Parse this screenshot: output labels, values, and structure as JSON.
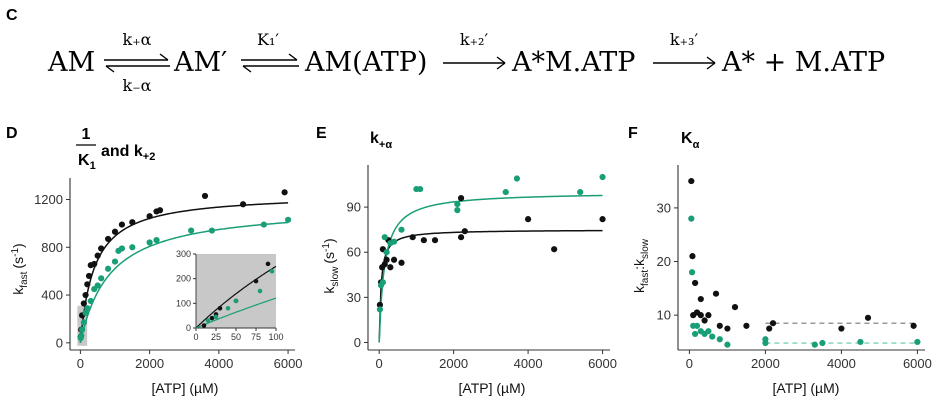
{
  "panel_labels": {
    "c": "C",
    "d": "D",
    "e": "E",
    "f": "F"
  },
  "scheme": {
    "s1": "AM",
    "r1_top": "k₊α",
    "r1_bot": "k₋α",
    "s2": "AM′",
    "r2_top": "K₁′",
    "s3": "AM(ATP)",
    "r3_top": "k₊₂′",
    "s4": "A*M.ATP",
    "r4_top": "k₊₃′",
    "s5": "A* + M.ATP"
  },
  "colors": {
    "black": "#111111",
    "green": "#1a9e77",
    "inset_bg": "#c8c8c8",
    "dashed_black": "#777777",
    "dashed_green": "#5fc6a5"
  },
  "chart_data": [
    {
      "panel": "D",
      "type": "scatter",
      "title": {
        "frac_num": "1",
        "frac_den": "K",
        "frac_den_sub": "1",
        "rest": "and k",
        "rest_sub": "+2"
      },
      "xlabel": "[ATP] (µM)",
      "ylabel": {
        "base": "k",
        "sub": "fast",
        "unit": "(s",
        "sup": "-1",
        "close": ")"
      },
      "xlim": [
        -300,
        6200
      ],
      "ylim": [
        -60,
        1380
      ],
      "xticks": [
        0,
        2000,
        4000,
        6000
      ],
      "yticks": [
        0,
        400,
        800,
        1200
      ],
      "series": [
        {
          "color": "black",
          "fit": {
            "vmax": 1250,
            "k": 400
          },
          "points": [
            [
              10,
              50
            ],
            [
              25,
              110
            ],
            [
              50,
              230
            ],
            [
              100,
              330
            ],
            [
              150,
              400
            ],
            [
              200,
              490
            ],
            [
              250,
              560
            ],
            [
              300,
              650
            ],
            [
              400,
              660
            ],
            [
              500,
              730
            ],
            [
              600,
              790
            ],
            [
              800,
              870
            ],
            [
              1000,
              930
            ],
            [
              1200,
              990
            ],
            [
              1500,
              1010
            ],
            [
              2000,
              1060
            ],
            [
              2200,
              1100
            ],
            [
              2300,
              1110
            ],
            [
              3600,
              1230
            ],
            [
              4700,
              1160
            ],
            [
              5900,
              1260
            ]
          ]
        },
        {
          "color": "green",
          "fit": {
            "vmax": 1150,
            "k": 850
          },
          "points": [
            [
              10,
              40
            ],
            [
              25,
              60
            ],
            [
              50,
              110
            ],
            [
              100,
              170
            ],
            [
              150,
              250
            ],
            [
              200,
              290
            ],
            [
              300,
              350
            ],
            [
              400,
              450
            ],
            [
              500,
              480
            ],
            [
              600,
              540
            ],
            [
              800,
              620
            ],
            [
              1000,
              680
            ],
            [
              1100,
              770
            ],
            [
              1200,
              790
            ],
            [
              1500,
              800
            ],
            [
              2000,
              840
            ],
            [
              2200,
              860
            ],
            [
              3200,
              940
            ],
            [
              3800,
              940
            ],
            [
              5300,
              990
            ],
            [
              6000,
              1030
            ]
          ]
        }
      ],
      "inset": {
        "xlim": [
          0,
          100
        ],
        "ylim": [
          0,
          300
        ],
        "xticks": [
          0,
          25,
          50,
          75,
          100
        ],
        "yticks": [
          0,
          100,
          200,
          300
        ],
        "series": [
          {
            "color": "black",
            "points": [
              [
                10,
                10
              ],
              [
                20,
                40
              ],
              [
                25,
                55
              ],
              [
                30,
                80
              ],
              [
                50,
                110
              ],
              [
                75,
                190
              ],
              [
                90,
                260
              ]
            ]
          },
          {
            "color": "green",
            "points": [
              [
                15,
                30
              ],
              [
                25,
                45
              ],
              [
                40,
                80
              ],
              [
                50,
                110
              ],
              [
                80,
                150
              ],
              [
                95,
                230
              ]
            ]
          }
        ]
      }
    },
    {
      "panel": "E",
      "type": "scatter",
      "title": {
        "base": "k",
        "sub": "+α"
      },
      "xlabel": "[ATP] (µM)",
      "ylabel": {
        "base": "k",
        "sub": "slow",
        "unit": "(s",
        "sup": "-1",
        "close": ")"
      },
      "xlim": [
        -300,
        6200
      ],
      "ylim": [
        -5,
        118
      ],
      "xticks": [
        0,
        2000,
        4000,
        6000
      ],
      "yticks": [
        0,
        30,
        60,
        90
      ],
      "series": [
        {
          "color": "black",
          "fit": {
            "vmax": 75,
            "k": 50
          },
          "points": [
            [
              20,
              25
            ],
            [
              50,
              40
            ],
            [
              80,
              50
            ],
            [
              100,
              62
            ],
            [
              150,
              52
            ],
            [
              200,
              55
            ],
            [
              250,
              68
            ],
            [
              300,
              50
            ],
            [
              400,
              55
            ],
            [
              600,
              53
            ],
            [
              900,
              70
            ],
            [
              1200,
              68
            ],
            [
              1500,
              68
            ],
            [
              2200,
              96
            ],
            [
              2200,
              70
            ],
            [
              2300,
              74
            ],
            [
              4000,
              82
            ],
            [
              4700,
              62
            ],
            [
              6000,
              82
            ]
          ]
        },
        {
          "color": "green",
          "fit": {
            "vmax": 100,
            "k": 140
          },
          "points": [
            [
              20,
              22
            ],
            [
              50,
              38
            ],
            [
              100,
              40
            ],
            [
              150,
              70
            ],
            [
              200,
              60
            ],
            [
              300,
              66
            ],
            [
              400,
              67
            ],
            [
              600,
              75
            ],
            [
              1000,
              102
            ],
            [
              1100,
              102
            ],
            [
              2100,
              88
            ],
            [
              2100,
              92
            ],
            [
              3400,
              100
            ],
            [
              3700,
              109
            ],
            [
              5400,
              100
            ],
            [
              6000,
              110
            ]
          ]
        }
      ]
    },
    {
      "panel": "F",
      "type": "scatter",
      "title": {
        "base": "K",
        "sub": "α"
      },
      "xlabel": "[ATP] (µM)",
      "ylabel": {
        "base": "k",
        "sub": "fast",
        "mid": ":k",
        "sub2": "slow"
      },
      "xlim": [
        -300,
        6200
      ],
      "ylim": [
        3.5,
        38
      ],
      "xticks": [
        0,
        2000,
        4000,
        6000
      ],
      "yticks": [
        10,
        20,
        30
      ],
      "hlines": [
        {
          "color": "black",
          "y": 8.5,
          "x0": 2000,
          "x1": 6000
        },
        {
          "color": "green",
          "y": 4.8,
          "x0": 2000,
          "x1": 6000
        }
      ],
      "series": [
        {
          "color": "black",
          "points": [
            [
              50,
              35
            ],
            [
              80,
              21
            ],
            [
              100,
              10
            ],
            [
              150,
              16
            ],
            [
              200,
              10.5
            ],
            [
              300,
              13
            ],
            [
              300,
              10
            ],
            [
              400,
              9
            ],
            [
              500,
              10
            ],
            [
              700,
              14
            ],
            [
              800,
              8
            ],
            [
              1000,
              7.5
            ],
            [
              1200,
              11.5
            ],
            [
              1500,
              8
            ],
            [
              2100,
              7.5
            ],
            [
              2200,
              8.5
            ],
            [
              4000,
              7.5
            ],
            [
              4700,
              9.5
            ],
            [
              5900,
              8
            ]
          ]
        },
        {
          "color": "green",
          "points": [
            [
              50,
              28
            ],
            [
              70,
              18
            ],
            [
              100,
              8
            ],
            [
              150,
              6.5
            ],
            [
              200,
              8
            ],
            [
              300,
              7
            ],
            [
              400,
              6.5
            ],
            [
              500,
              7
            ],
            [
              600,
              6
            ],
            [
              800,
              5.5
            ],
            [
              1000,
              4.5
            ],
            [
              2000,
              4.8
            ],
            [
              2000,
              5.5
            ],
            [
              3300,
              4.5
            ],
            [
              3500,
              4.8
            ],
            [
              4500,
              5
            ],
            [
              6000,
              5
            ]
          ]
        }
      ]
    }
  ]
}
